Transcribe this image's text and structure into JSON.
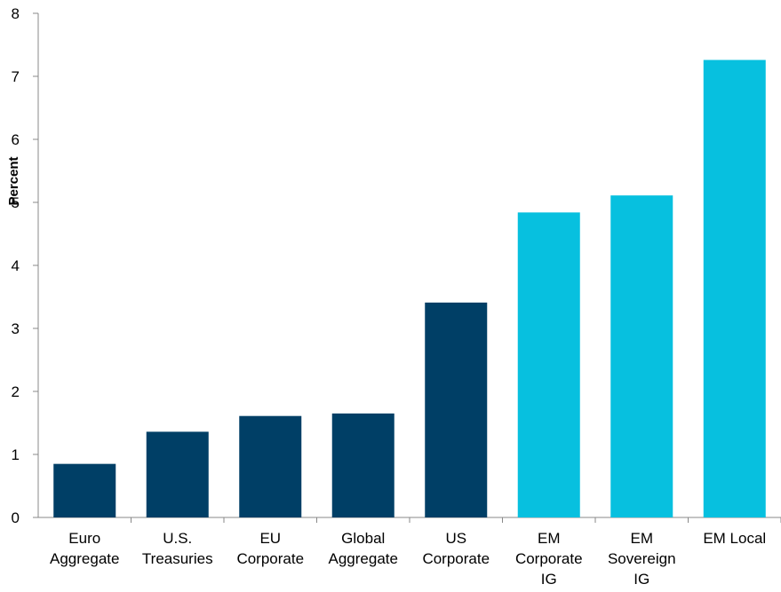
{
  "chart_data": {
    "type": "bar",
    "ylabel": "Percent",
    "xlabel": "",
    "ylim": [
      0,
      8
    ],
    "yticks": [
      "0",
      "1",
      "2",
      "3",
      "4",
      "5",
      "6",
      "7",
      "8"
    ],
    "grid": false,
    "legend": "none",
    "categories": [
      [
        "Euro",
        "Aggregate"
      ],
      [
        "U.S.",
        "Treasuries"
      ],
      [
        "EU",
        "Corporate"
      ],
      [
        "Global",
        "Aggregate"
      ],
      [
        "US",
        "Corporate"
      ],
      [
        "EM",
        "Corporate",
        "IG"
      ],
      [
        "EM",
        "Sovereign",
        "IG"
      ],
      [
        "EM Local"
      ]
    ],
    "values": [
      0.85,
      1.36,
      1.61,
      1.65,
      3.41,
      4.84,
      5.11,
      7.26
    ],
    "colors": [
      "#003f66",
      "#003f66",
      "#003f66",
      "#003f66",
      "#003f66",
      "#07c0df",
      "#07c0df",
      "#07c0df"
    ]
  }
}
